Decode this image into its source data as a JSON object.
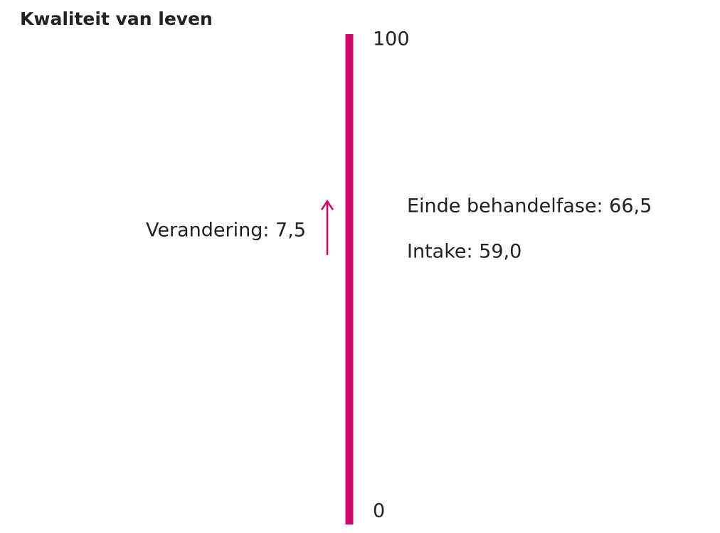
{
  "chart_data": {
    "type": "scale",
    "title": "Kwaliteit van leven",
    "ylim": [
      0,
      100
    ],
    "yticks": [
      0,
      100
    ],
    "values": [
      66.5,
      59.0
    ],
    "value_labels": [
      "Einde behandelfase: 66,5",
      "Intake: 59,0"
    ],
    "change": {
      "value": 7.5,
      "label": "Verandering: 7,5"
    },
    "color": "#d6006f"
  }
}
